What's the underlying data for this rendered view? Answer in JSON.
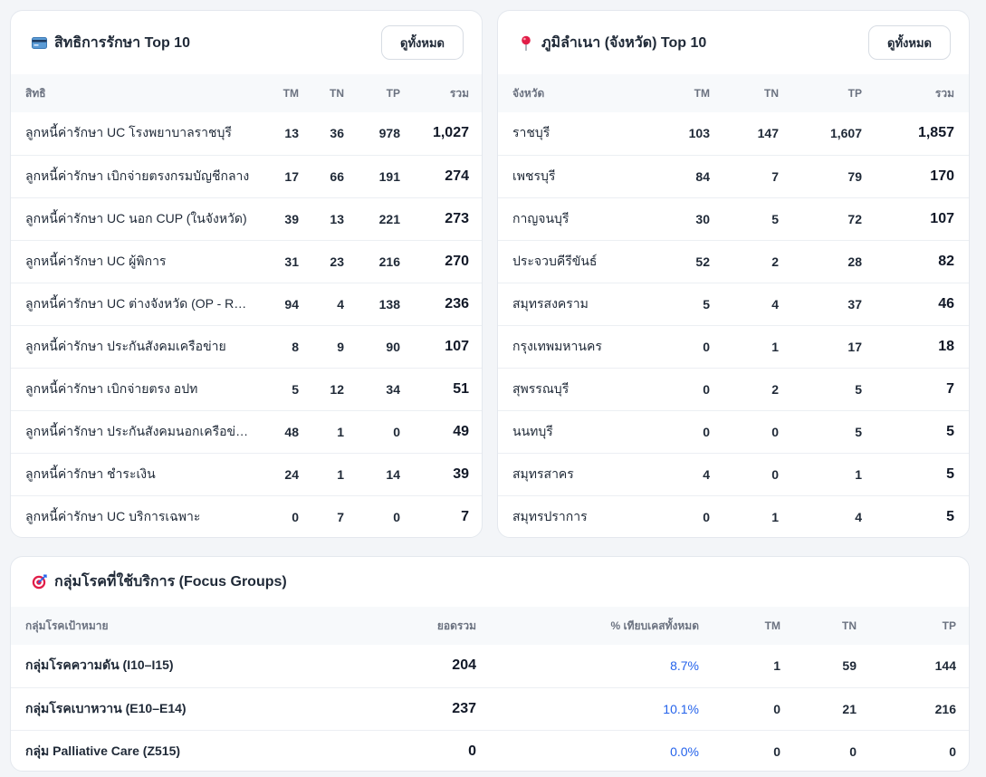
{
  "rights_card": {
    "title": "สิทธิการรักษา Top 10",
    "icon": "credit-card-icon",
    "view_all": "ดูทั้งหมด",
    "columns": [
      "สิทธิ",
      "TM",
      "TN",
      "TP",
      "รวม"
    ],
    "rows": [
      {
        "name": "ลูกหนี้ค่ารักษา UC โรงพยาบาลราชบุรี",
        "tm": "13",
        "tn": "36",
        "tp": "978",
        "total": "1,027"
      },
      {
        "name": "ลูกหนี้ค่ารักษา เบิกจ่ายตรงกรมบัญชีกลาง",
        "tm": "17",
        "tn": "66",
        "tp": "191",
        "total": "274"
      },
      {
        "name": "ลูกหนี้ค่ารักษา UC นอก CUP (ในจังหวัด)",
        "tm": "39",
        "tn": "13",
        "tp": "221",
        "total": "273"
      },
      {
        "name": "ลูกหนี้ค่ารักษา UC ผู้พิการ",
        "tm": "31",
        "tn": "23",
        "tp": "216",
        "total": "270"
      },
      {
        "name": "ลูกหนี้ค่ารักษา UC ต่างจังหวัด (OP - Refer)",
        "tm": "94",
        "tn": "4",
        "tp": "138",
        "total": "236"
      },
      {
        "name": "ลูกหนี้ค่ารักษา ประกันสังคมเครือข่าย",
        "tm": "8",
        "tn": "9",
        "tp": "90",
        "total": "107"
      },
      {
        "name": "ลูกหนี้ค่ารักษา เบิกจ่ายตรง อปท",
        "tm": "5",
        "tn": "12",
        "tp": "34",
        "total": "51"
      },
      {
        "name": "ลูกหนี้ค่ารักษา ประกันสังคมนอกเครือข่าย",
        "tm": "48",
        "tn": "1",
        "tp": "0",
        "total": "49"
      },
      {
        "name": "ลูกหนี้ค่ารักษา ชำระเงิน",
        "tm": "24",
        "tn": "1",
        "tp": "14",
        "total": "39"
      },
      {
        "name": "ลูกหนี้ค่ารักษา UC บริการเฉพาะ",
        "tm": "0",
        "tn": "7",
        "tp": "0",
        "total": "7"
      }
    ]
  },
  "province_card": {
    "title": "ภูมิลำเนา (จังหวัด) Top 10",
    "icon": "map-pin-icon",
    "view_all": "ดูทั้งหมด",
    "columns": [
      "จังหวัด",
      "TM",
      "TN",
      "TP",
      "รวม"
    ],
    "rows": [
      {
        "name": "ราชบุรี",
        "tm": "103",
        "tn": "147",
        "tp": "1,607",
        "total": "1,857"
      },
      {
        "name": "เพชรบุรี",
        "tm": "84",
        "tn": "7",
        "tp": "79",
        "total": "170"
      },
      {
        "name": "กาญจนบุรี",
        "tm": "30",
        "tn": "5",
        "tp": "72",
        "total": "107"
      },
      {
        "name": "ประจวบคีรีขันธ์",
        "tm": "52",
        "tn": "2",
        "tp": "28",
        "total": "82"
      },
      {
        "name": "สมุทรสงคราม",
        "tm": "5",
        "tn": "4",
        "tp": "37",
        "total": "46"
      },
      {
        "name": "กรุงเทพมหานคร",
        "tm": "0",
        "tn": "1",
        "tp": "17",
        "total": "18"
      },
      {
        "name": "สุพรรณบุรี",
        "tm": "0",
        "tn": "2",
        "tp": "5",
        "total": "7"
      },
      {
        "name": "นนทบุรี",
        "tm": "0",
        "tn": "0",
        "tp": "5",
        "total": "5"
      },
      {
        "name": "สมุทรสาคร",
        "tm": "4",
        "tn": "0",
        "tp": "1",
        "total": "5"
      },
      {
        "name": "สมุทรปราการ",
        "tm": "0",
        "tn": "1",
        "tp": "4",
        "total": "5"
      }
    ]
  },
  "focus_card": {
    "title": "กลุ่มโรคที่ใช้บริการ (Focus Groups)",
    "icon": "target-icon",
    "columns": [
      "กลุ่มโรคเป้าหมาย",
      "ยอดรวม",
      "% เทียบเคสทั้งหมด",
      "TM",
      "TN",
      "TP"
    ],
    "rows": [
      {
        "name": "กลุ่มโรคความดัน (I10–I15)",
        "total": "204",
        "pct": "8.7%",
        "tm": "1",
        "tn": "59",
        "tp": "144"
      },
      {
        "name": "กลุ่มโรคเบาหวาน (E10–E14)",
        "total": "237",
        "pct": "10.1%",
        "tm": "0",
        "tn": "21",
        "tp": "216"
      },
      {
        "name": "กลุ่ม Palliative Care (Z515)",
        "total": "0",
        "pct": "0.0%",
        "tm": "0",
        "tn": "0",
        "tp": "0"
      }
    ]
  },
  "colors": {
    "accent": "#2563eb",
    "card_border": "#e4e8ee",
    "header_row": "#f7f9fb",
    "page_bg": "#f3f5f8"
  }
}
